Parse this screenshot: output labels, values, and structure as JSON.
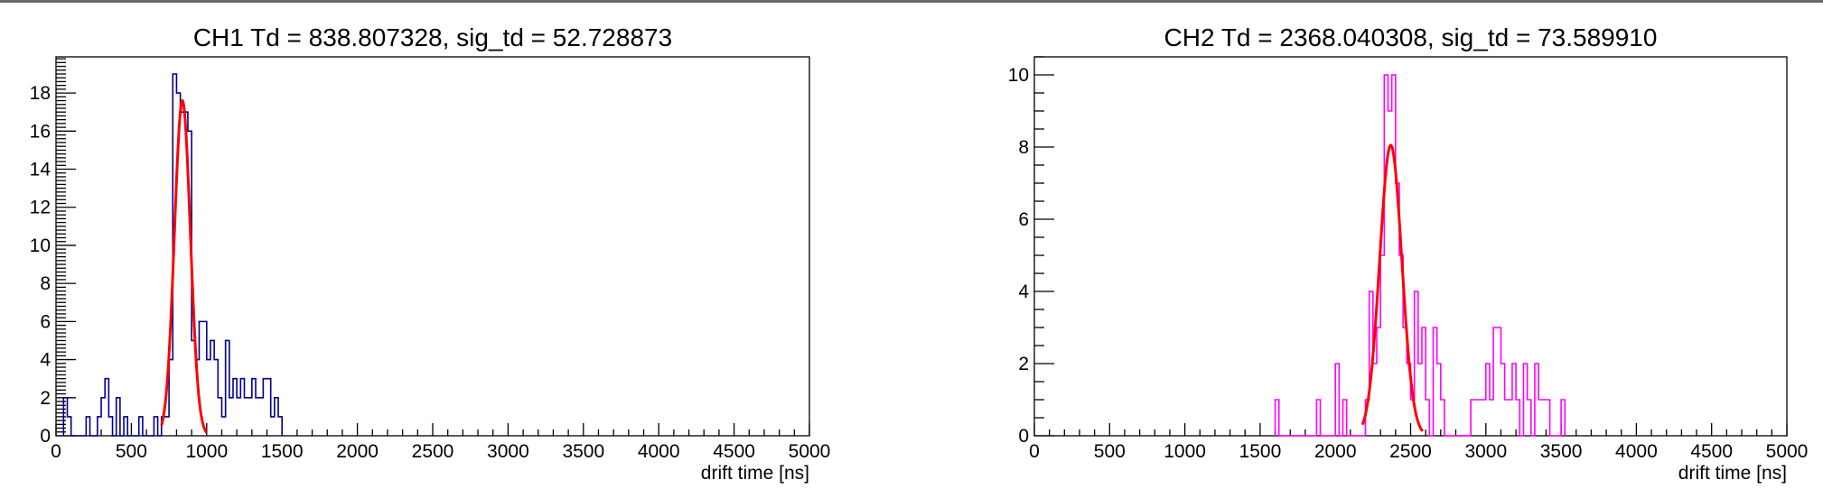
{
  "chart_data": [
    {
      "type": "histogram",
      "title": "CH1 Td = 838.807328, sig_td = 52.728873",
      "xlabel": "drift time [ns]",
      "ylabel": "",
      "xlim": [
        0,
        5000
      ],
      "ylim": [
        0,
        19.9
      ],
      "x_ticks": [
        0,
        500,
        1000,
        1500,
        2000,
        2500,
        3000,
        3500,
        4000,
        4500,
        5000
      ],
      "y_ticks": [
        0,
        2,
        4,
        6,
        8,
        10,
        12,
        14,
        16,
        18
      ],
      "bin_width": 25,
      "grid": false,
      "series": [
        {
          "kind": "histogram",
          "color": "#00008b",
          "bins": [
            [
              50,
              2
            ],
            [
              75,
              1
            ],
            [
              100,
              0
            ],
            [
              125,
              0
            ],
            [
              150,
              0
            ],
            [
              175,
              0
            ],
            [
              200,
              1
            ],
            [
              225,
              0
            ],
            [
              250,
              0
            ],
            [
              275,
              1
            ],
            [
              300,
              2
            ],
            [
              325,
              3
            ],
            [
              350,
              1
            ],
            [
              375,
              0
            ],
            [
              400,
              2
            ],
            [
              425,
              0
            ],
            [
              450,
              1
            ],
            [
              475,
              0
            ],
            [
              500,
              0
            ],
            [
              525,
              0
            ],
            [
              550,
              1
            ],
            [
              575,
              0
            ],
            [
              600,
              0
            ],
            [
              625,
              0
            ],
            [
              650,
              1
            ],
            [
              675,
              0
            ],
            [
              700,
              1
            ],
            [
              725,
              1
            ],
            [
              750,
              4
            ],
            [
              775,
              19
            ],
            [
              800,
              18
            ],
            [
              825,
              17
            ],
            [
              850,
              17
            ],
            [
              875,
              16
            ],
            [
              900,
              5
            ],
            [
              925,
              4
            ],
            [
              950,
              6
            ],
            [
              975,
              6
            ],
            [
              1000,
              4
            ],
            [
              1025,
              5
            ],
            [
              1050,
              4
            ],
            [
              1075,
              2
            ],
            [
              1100,
              1
            ],
            [
              1125,
              5
            ],
            [
              1150,
              2
            ],
            [
              1175,
              3
            ],
            [
              1200,
              2
            ],
            [
              1225,
              3
            ],
            [
              1250,
              2
            ],
            [
              1275,
              2
            ],
            [
              1300,
              3
            ],
            [
              1325,
              2
            ],
            [
              1350,
              2
            ],
            [
              1375,
              3
            ],
            [
              1400,
              3
            ],
            [
              1425,
              1
            ],
            [
              1450,
              2
            ],
            [
              1475,
              1
            ]
          ]
        },
        {
          "kind": "gaussian_fit",
          "color": "#ff0000",
          "amplitude": 17.6,
          "mean": 838.807328,
          "sigma": 52.728873,
          "range": [
            700,
            1000
          ]
        }
      ]
    },
    {
      "type": "histogram",
      "title": "CH2 Td = 2368.040308, sig_td = 73.589910",
      "xlabel": "drift time [ns]",
      "ylabel": "",
      "xlim": [
        0,
        5000
      ],
      "ylim": [
        0,
        10.5
      ],
      "x_ticks": [
        0,
        500,
        1000,
        1500,
        2000,
        2500,
        3000,
        3500,
        4000,
        4500,
        5000
      ],
      "y_ticks": [
        0,
        2,
        4,
        6,
        8,
        10
      ],
      "bin_width": 25,
      "grid": false,
      "series": [
        {
          "kind": "histogram",
          "color": "#ff00ff",
          "bins": [
            [
              1600,
              1
            ],
            [
              1625,
              0
            ],
            [
              1650,
              0
            ],
            [
              1675,
              0
            ],
            [
              1700,
              0
            ],
            [
              1725,
              0
            ],
            [
              1750,
              0
            ],
            [
              1775,
              0
            ],
            [
              1800,
              0
            ],
            [
              1825,
              0
            ],
            [
              1850,
              0
            ],
            [
              1875,
              1
            ],
            [
              1900,
              0
            ],
            [
              1925,
              0
            ],
            [
              1950,
              0
            ],
            [
              1975,
              0
            ],
            [
              2000,
              2
            ],
            [
              2025,
              0
            ],
            [
              2050,
              1
            ],
            [
              2075,
              0
            ],
            [
              2100,
              0
            ],
            [
              2125,
              0
            ],
            [
              2150,
              0
            ],
            [
              2175,
              0
            ],
            [
              2200,
              1
            ],
            [
              2225,
              4
            ],
            [
              2250,
              2
            ],
            [
              2275,
              3
            ],
            [
              2300,
              5
            ],
            [
              2325,
              10
            ],
            [
              2350,
              9
            ],
            [
              2375,
              10
            ],
            [
              2400,
              7
            ],
            [
              2425,
              5
            ],
            [
              2450,
              3
            ],
            [
              2475,
              2
            ],
            [
              2500,
              1
            ],
            [
              2525,
              4
            ],
            [
              2550,
              2
            ],
            [
              2575,
              3
            ],
            [
              2600,
              1
            ],
            [
              2625,
              0
            ],
            [
              2650,
              3
            ],
            [
              2675,
              2
            ],
            [
              2700,
              1
            ],
            [
              2725,
              0
            ],
            [
              2750,
              0
            ],
            [
              2775,
              0
            ],
            [
              2800,
              0
            ],
            [
              2825,
              0
            ],
            [
              2850,
              0
            ],
            [
              2875,
              0
            ],
            [
              2900,
              1
            ],
            [
              2925,
              1
            ],
            [
              2950,
              1
            ],
            [
              2975,
              1
            ],
            [
              3000,
              2
            ],
            [
              3025,
              1
            ],
            [
              3050,
              3
            ],
            [
              3075,
              3
            ],
            [
              3100,
              2
            ],
            [
              3125,
              1
            ],
            [
              3150,
              1
            ],
            [
              3175,
              2
            ],
            [
              3200,
              1
            ],
            [
              3225,
              0
            ],
            [
              3250,
              2
            ],
            [
              3275,
              1
            ],
            [
              3300,
              0
            ],
            [
              3325,
              2
            ],
            [
              3350,
              1
            ],
            [
              3375,
              1
            ],
            [
              3400,
              1
            ],
            [
              3425,
              0
            ],
            [
              3450,
              0
            ],
            [
              3475,
              0
            ],
            [
              3500,
              1
            ]
          ]
        },
        {
          "kind": "gaussian_fit",
          "color": "#ff0000",
          "amplitude": 8.05,
          "mean": 2368.040308,
          "sigma": 73.58991,
          "range": [
            2180,
            2580
          ]
        }
      ]
    }
  ]
}
